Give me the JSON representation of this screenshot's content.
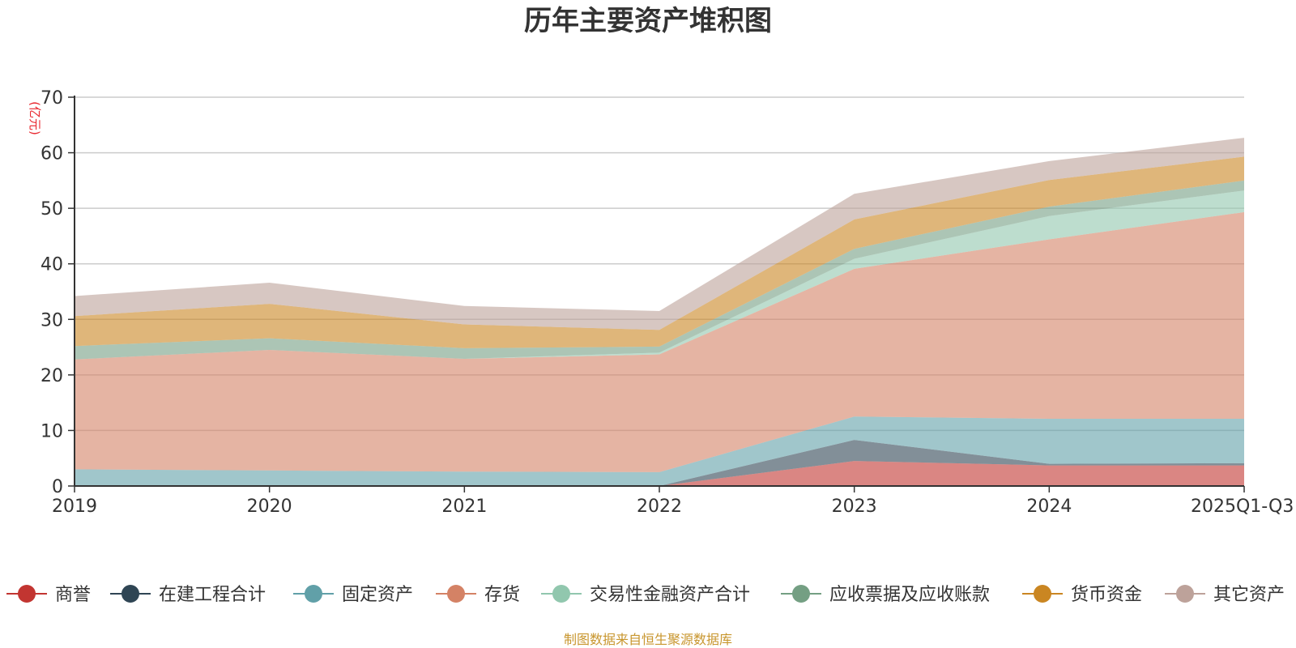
{
  "chart_data": {
    "type": "area",
    "stacked": true,
    "title": "历年主要资产堆积图",
    "unit_label": "(亿元)",
    "x": [
      "2019",
      "2020",
      "2021",
      "2022",
      "2023",
      "2024",
      "2025Q1-Q3"
    ],
    "ylim": [
      0,
      70
    ],
    "yticks": [
      0,
      10,
      20,
      30,
      40,
      50,
      60,
      70
    ],
    "grid": true,
    "legend_position": "bottom",
    "series": [
      {
        "name": "商誉",
        "color": "#c23531",
        "values": [
          0,
          0,
          0,
          0,
          4.5,
          3.7,
          3.7
        ]
      },
      {
        "name": "在建工程合计",
        "color": "#2f4554",
        "values": [
          0,
          0,
          0,
          0,
          3.8,
          0.3,
          0.4
        ]
      },
      {
        "name": "固定资产",
        "color": "#61a0a8",
        "values": [
          3.0,
          2.8,
          2.6,
          2.5,
          4.2,
          8.1,
          8.0
        ]
      },
      {
        "name": "存货",
        "color": "#d48265",
        "values": [
          19.8,
          21.7,
          20.3,
          21.2,
          26.6,
          32.3,
          37.2
        ]
      },
      {
        "name": "交易性金融资产合计",
        "color": "#91c7ae",
        "values": [
          0,
          0,
          0,
          0.3,
          1.8,
          4.2,
          3.9
        ]
      },
      {
        "name": "应收票据及应收账款",
        "color": "#749f83",
        "values": [
          2.4,
          2.1,
          1.9,
          1.1,
          1.8,
          1.7,
          1.8
        ]
      },
      {
        "name": "货币资金",
        "color": "#ca8622",
        "values": [
          5.4,
          6.2,
          4.3,
          3.0,
          5.3,
          4.8,
          4.3
        ]
      },
      {
        "name": "其它资产",
        "color": "#bda29a",
        "values": [
          3.6,
          3.8,
          3.3,
          3.4,
          4.6,
          3.4,
          3.4
        ]
      }
    ]
  },
  "footer": "制图数据来自恒生聚源数据库"
}
